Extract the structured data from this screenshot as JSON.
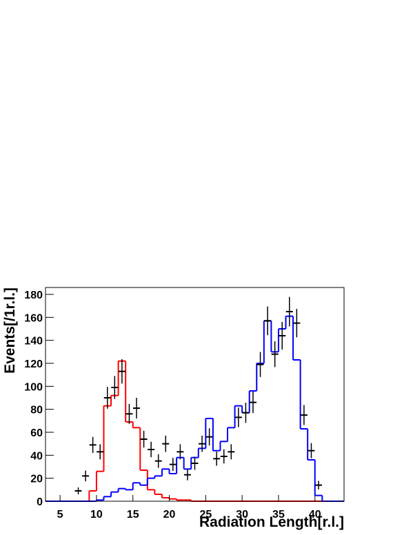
{
  "chart_data": {
    "type": "histogram",
    "xlabel": "Radiation Length[r.l.]",
    "ylabel": "Events[/1r.l.]",
    "xlim": [
      3,
      44
    ],
    "ylim": [
      0,
      186
    ],
    "xticks": [
      5,
      10,
      15,
      20,
      25,
      30,
      35,
      40
    ],
    "yticks": [
      0,
      20,
      40,
      60,
      80,
      100,
      120,
      140,
      160,
      180
    ],
    "bins": [
      3,
      4,
      5,
      6,
      7,
      8,
      9,
      10,
      11,
      12,
      13,
      14,
      15,
      16,
      17,
      18,
      19,
      20,
      21,
      22,
      23,
      24,
      25,
      26,
      27,
      28,
      29,
      30,
      31,
      32,
      33,
      34,
      35,
      36,
      37,
      38,
      39,
      40,
      41,
      42,
      43,
      44
    ],
    "series": [
      {
        "color": "#ff0000",
        "values": [
          0,
          0,
          0,
          0,
          0,
          0,
          9,
          26,
          83,
          92,
          122,
          69,
          64,
          27,
          10,
          6,
          3,
          2,
          1,
          1,
          0,
          0,
          0,
          0,
          0,
          0,
          0,
          0,
          0,
          0,
          0,
          0,
          0,
          0,
          0,
          0,
          0,
          0,
          0,
          0,
          0
        ]
      },
      {
        "color": "#0000ff",
        "values": [
          0,
          0,
          0,
          0,
          0,
          0,
          0,
          1,
          4,
          8,
          11,
          10,
          16,
          14,
          20,
          22,
          28,
          24,
          38,
          28,
          38,
          46,
          72,
          44,
          52,
          64,
          83,
          77,
          96,
          120,
          157,
          130,
          150,
          161,
          123,
          63,
          36,
          5,
          0,
          0,
          0
        ]
      }
    ],
    "points": {
      "color": "#000000",
      "x": [
        7.5,
        8.5,
        9.5,
        10.5,
        11.5,
        12.5,
        13.5,
        14.5,
        15.5,
        16.5,
        17.5,
        18.5,
        19.5,
        20.5,
        21.5,
        22.5,
        23.5,
        24.5,
        25.5,
        26.5,
        27.5,
        28.5,
        29.5,
        30.5,
        31.5,
        32.5,
        33.5,
        34.5,
        35.5,
        36.5,
        37.5,
        38.5,
        39.5,
        40.5
      ],
      "values": [
        9,
        22,
        49,
        43,
        90,
        99,
        113,
        76,
        81,
        54,
        45,
        35,
        50,
        32,
        43,
        23,
        33,
        50,
        56,
        37,
        39,
        43,
        73,
        77,
        86,
        119,
        157,
        128,
        144,
        165,
        155,
        75,
        44,
        14
      ],
      "errors": [
        3,
        4.7,
        7,
        6.6,
        9.5,
        10,
        10.6,
        8.7,
        9,
        7.3,
        6.7,
        5.9,
        7.1,
        5.7,
        6.6,
        4.8,
        5.7,
        7.1,
        7.5,
        6.1,
        6.2,
        6.6,
        8.5,
        8.8,
        9.3,
        10.9,
        12.5,
        11.3,
        12,
        12.8,
        12.4,
        8.7,
        6.6,
        3.7
      ]
    }
  }
}
